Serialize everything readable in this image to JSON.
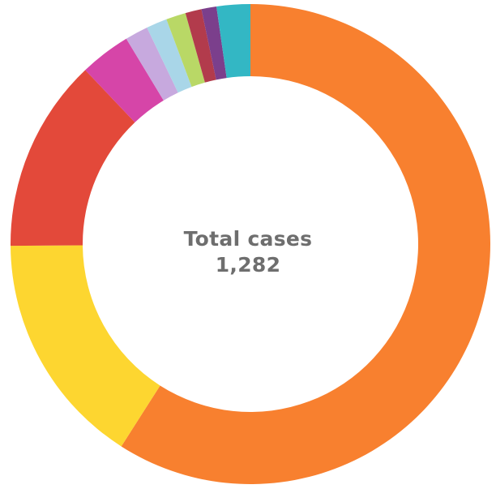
{
  "chart_data": {
    "type": "pie",
    "center_label": "Total cases",
    "center_value": "1,282",
    "total": 1282,
    "grid": false,
    "legend": "none",
    "slices": [
      {
        "value": 757,
        "color": "#F8802F"
      },
      {
        "value": 203,
        "color": "#FDD630"
      },
      {
        "value": 167,
        "color": "#E3493A"
      },
      {
        "value": 44,
        "color": "#D645A8"
      },
      {
        "value": 20,
        "color": "#C7A9DE"
      },
      {
        "value": 18,
        "color": "#A9D6E8"
      },
      {
        "value": 17,
        "color": "#B9D866"
      },
      {
        "value": 14,
        "color": "#B23B4C"
      },
      {
        "value": 13,
        "color": "#7B3F8C"
      },
      {
        "value": 29,
        "color": "#33B7C4"
      }
    ]
  }
}
